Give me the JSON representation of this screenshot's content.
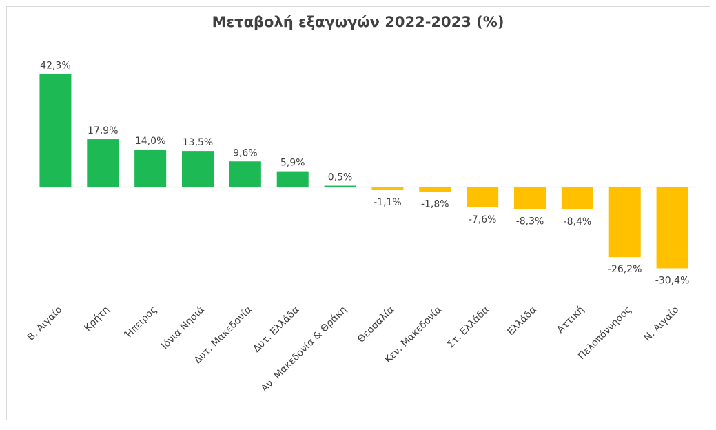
{
  "chart_data": {
    "type": "bar",
    "title": "Μεταβολή εξαγωγών 2022-2023 (%)",
    "xlabel": "",
    "ylabel": "",
    "categories": [
      "Β. Αιγαίο",
      "Κρήτη",
      "Ήπειρος",
      "Ιόνια Νησιά",
      "Δυτ. Μακεδονία",
      "Δυτ. Ελλάδα",
      "Αν. Μακεδονία & Θράκη",
      "Θεσσαλία",
      "Κεν. Μακεδονία",
      "Στ. Ελλάδα",
      "Ελλάδα",
      "Αττική",
      "Πελοπόννησος",
      "Ν. Αιγαίο"
    ],
    "values": [
      42.3,
      17.9,
      14.0,
      13.5,
      9.6,
      5.9,
      0.5,
      -1.1,
      -1.8,
      -7.6,
      -8.3,
      -8.4,
      -26.2,
      -30.4
    ],
    "data_labels": [
      "42,3%",
      "17,9%",
      "14,0%",
      "13,5%",
      "9,6%",
      "5,9%",
      "0,5%",
      "-1,1%",
      "-1,8%",
      "-7,6%",
      "-8,3%",
      "-8,4%",
      "-26,2%",
      "-30,4%"
    ],
    "ylim": [
      -40,
      45
    ],
    "grid": false,
    "legend": "none",
    "colors": {
      "positive": "#1DB954",
      "negative": "#FFC000",
      "axis": "#d9d9d9",
      "text": "#404040"
    }
  }
}
